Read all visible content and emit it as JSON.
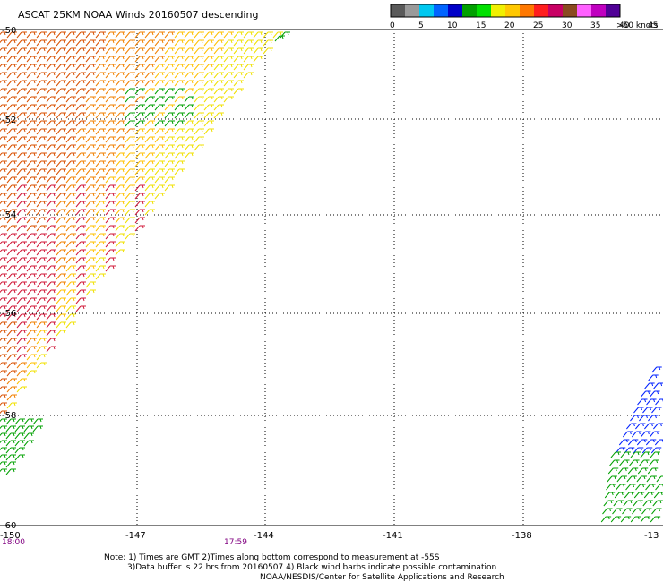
{
  "title": "ASCAT 25KM NOAA Winds 20160507 descending",
  "colorbar": {
    "colors": [
      "#5a5a5a",
      "#9a9a9a",
      "#00c8f0",
      "#0064ff",
      "#0000c8",
      "#00a000",
      "#00e000",
      "#f0f000",
      "#ffc800",
      "#ff7800",
      "#ff1e1e",
      "#c80064",
      "#8a4a20",
      "#ff60ff",
      "#c000c0",
      "#500096"
    ],
    "ticks": [
      "0",
      "5",
      "10",
      "15",
      "20",
      "25",
      "30",
      "35",
      "40",
      "45",
      ">50 knots"
    ]
  },
  "map": {
    "lat_labels": [
      "-50",
      "-52",
      "-54",
      "-56",
      "-58",
      "-60"
    ],
    "lon_labels": [
      "-150",
      "-147",
      "-144",
      "-141",
      "-138",
      "-13"
    ],
    "time_labels": [
      "18:00",
      "17:59"
    ],
    "time_color": "#800080",
    "barb_palette": {
      "yellow": "#f0e000",
      "gold": "#ffc000",
      "orange": "#f08000",
      "dark_orange": "#d85000",
      "red": "#d01838",
      "green": "#00a000",
      "lime": "#00d000",
      "blue": "#0020ff"
    }
  },
  "notes": {
    "line1": "Note: 1) Times are GMT 2)Times along bottom correspond to measurement at -55S",
    "line2": "3)Data buffer is 22 hrs from 20160507 4) Black wind barbs indicate possible contamination",
    "line3": "NOAA/NESDIS/Center for Satellite Applications and Research"
  }
}
